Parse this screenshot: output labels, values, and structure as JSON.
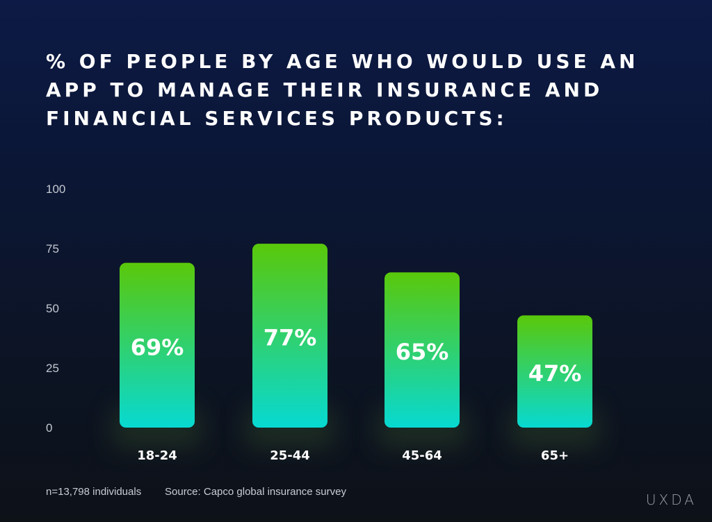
{
  "chart_data": {
    "type": "bar",
    "title": "% OF PEOPLE BY AGE WHO WOULD USE AN APP TO MANAGE THEIR INSURANCE AND FINANCIAL SERVICES PRODUCTS:",
    "categories": [
      "18-24",
      "25-44",
      "45-64",
      "65+"
    ],
    "values": [
      69,
      77,
      65,
      47
    ],
    "data_labels": [
      "69%",
      "77%",
      "65%",
      "47%"
    ],
    "yticks": [
      "0",
      "25",
      "50",
      "75",
      "100"
    ],
    "ylim": [
      0,
      100
    ],
    "grid": false,
    "colors": {
      "bar_top": "#5ac80a",
      "bar_bottom": "#07d9d2"
    }
  },
  "footer": {
    "sample": "n=13,798 individuals",
    "source": "Source: Capco global insurance survey"
  },
  "logo": "UXDA"
}
